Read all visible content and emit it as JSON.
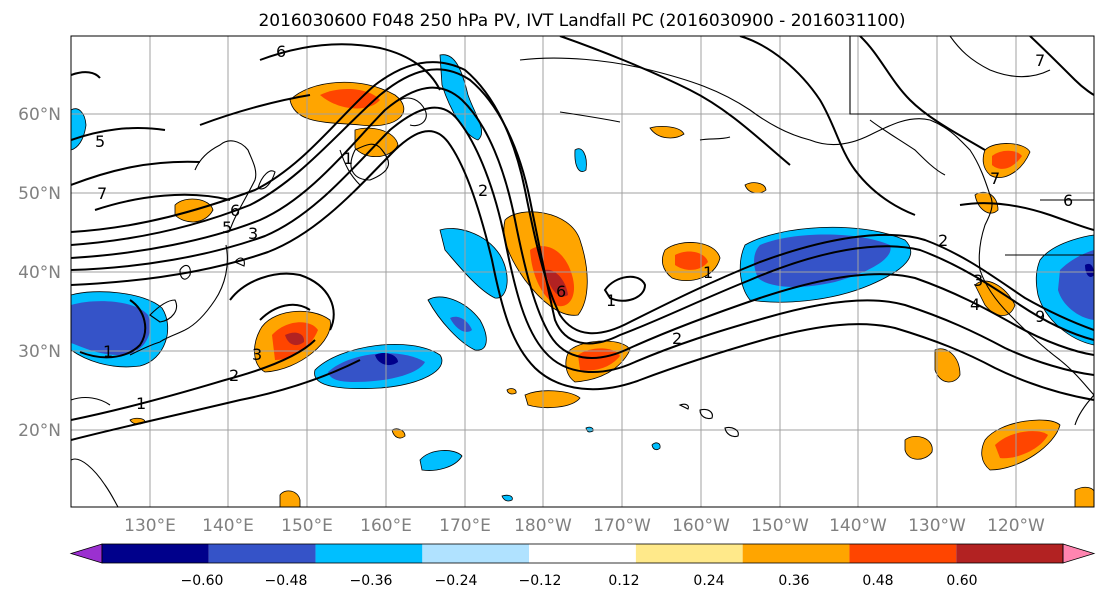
{
  "map": {
    "title": "2016030600 F048 250 hPa PV, IVT Landfall PC (2016030900 - 2016031100)",
    "lat_labels": [
      "60°N",
      "50°N",
      "40°N",
      "30°N",
      "20°N"
    ],
    "lon_labels": [
      "130°E",
      "140°E",
      "150°E",
      "160°E",
      "170°E",
      "180°W",
      "170°W",
      "160°W",
      "150°W",
      "140°W",
      "130°W",
      "120°W"
    ],
    "contour_labels": [
      "6",
      "5",
      "7",
      "6",
      "5",
      "3",
      "2",
      "1",
      "3",
      "2",
      "1",
      "1",
      "2",
      "1",
      "6",
      "1",
      "2",
      "3",
      "4",
      "7",
      "6",
      "7",
      "9"
    ],
    "colorbar": {
      "tick_labels": [
        "−0.60",
        "−0.48",
        "−0.36",
        "−0.24",
        "−0.12",
        "0.12",
        "0.24",
        "0.36",
        "0.48",
        "0.60"
      ],
      "colors": [
        "#9b30d0",
        "#00008b",
        "#3553c8",
        "#00bfff",
        "#b0e2ff",
        "#ffffff",
        "#ffe98a",
        "#ffa500",
        "#ff4500",
        "#b22222",
        "#ff85b0"
      ]
    }
  }
}
